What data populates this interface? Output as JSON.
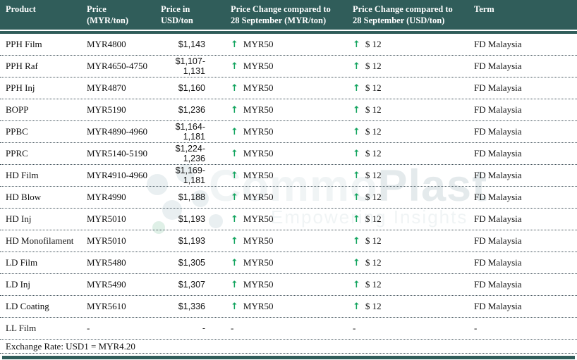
{
  "table": {
    "columns": [
      {
        "line1": "Product",
        "line2": ""
      },
      {
        "line1": "Price",
        "line2": "(MYR/ton)"
      },
      {
        "line1": "Price in",
        "line2": "USD/ton"
      },
      {
        "line1": "Price Change compared to",
        "line2": "28 September (MYR/ton)"
      },
      {
        "line1": "Price Change compared to",
        "line2": "28 September (USD/ton)"
      },
      {
        "line1": "Term",
        "line2": ""
      }
    ],
    "rows": [
      {
        "product": "PPH Film",
        "price_myr": "MYR4800",
        "price_usd": "$1,143",
        "change_myr": {
          "up": true,
          "text": "MYR50"
        },
        "change_usd": {
          "up": true,
          "text": "$ 12"
        },
        "term": "FD Malaysia"
      },
      {
        "product": "PPH Raf",
        "price_myr": "MYR4650-4750",
        "price_usd": "$1,107-1,131",
        "change_myr": {
          "up": true,
          "text": "MYR50"
        },
        "change_usd": {
          "up": true,
          "text": "$ 12"
        },
        "term": "FD Malaysia"
      },
      {
        "product": "PPH Inj",
        "price_myr": "MYR4870",
        "price_usd": "$1,160",
        "change_myr": {
          "up": true,
          "text": "MYR50"
        },
        "change_usd": {
          "up": true,
          "text": "$ 12"
        },
        "term": "FD Malaysia"
      },
      {
        "product": "BOPP",
        "price_myr": "MYR5190",
        "price_usd": "$1,236",
        "change_myr": {
          "up": true,
          "text": "MYR50"
        },
        "change_usd": {
          "up": true,
          "text": "$ 12"
        },
        "term": "FD Malaysia"
      },
      {
        "product": "PPBC",
        "price_myr": "MYR4890-4960",
        "price_usd": "$1,164-1,181",
        "change_myr": {
          "up": true,
          "text": "MYR50"
        },
        "change_usd": {
          "up": true,
          "text": "$ 12"
        },
        "term": "FD Malaysia"
      },
      {
        "product": "PPRC",
        "price_myr": "MYR5140-5190",
        "price_usd": "$1,224-1,236",
        "change_myr": {
          "up": true,
          "text": "MYR50"
        },
        "change_usd": {
          "up": true,
          "text": "$ 12"
        },
        "term": "FD Malaysia"
      },
      {
        "product": "HD Film",
        "price_myr": "MYR4910-4960",
        "price_usd": "$1,169-1,181",
        "change_myr": {
          "up": true,
          "text": "MYR50"
        },
        "change_usd": {
          "up": true,
          "text": "$ 12"
        },
        "term": "FD Malaysia"
      },
      {
        "product": "HD Blow",
        "price_myr": "MYR4990",
        "price_usd": "$1,188",
        "change_myr": {
          "up": true,
          "text": "MYR50"
        },
        "change_usd": {
          "up": true,
          "text": "$ 12"
        },
        "term": "FD Malaysia"
      },
      {
        "product": "HD Inj",
        "price_myr": "MYR5010",
        "price_usd": "$1,193",
        "change_myr": {
          "up": true,
          "text": "MYR50"
        },
        "change_usd": {
          "up": true,
          "text": "$ 12"
        },
        "term": "FD Malaysia"
      },
      {
        "product": "HD Monofilament",
        "price_myr": "MYR5010",
        "price_usd": "$1,193",
        "change_myr": {
          "up": true,
          "text": "MYR50"
        },
        "change_usd": {
          "up": true,
          "text": "$ 12"
        },
        "term": "FD Malaysia"
      },
      {
        "product": "LD Film",
        "price_myr": "MYR5480",
        "price_usd": "$1,305",
        "change_myr": {
          "up": true,
          "text": "MYR50"
        },
        "change_usd": {
          "up": true,
          "text": "$ 12"
        },
        "term": "FD Malaysia"
      },
      {
        "product": "LD Inj",
        "price_myr": "MYR5490",
        "price_usd": "$1,307",
        "change_myr": {
          "up": true,
          "text": "MYR50"
        },
        "change_usd": {
          "up": true,
          "text": "$ 12"
        },
        "term": "FD Malaysia"
      },
      {
        "product": "LD Coating",
        "price_myr": "MYR5610",
        "price_usd": "$1,336",
        "change_myr": {
          "up": true,
          "text": "MYR50"
        },
        "change_usd": {
          "up": true,
          "text": "$ 12"
        },
        "term": "FD Malaysia"
      },
      {
        "product": "LL Film",
        "price_myr": "-",
        "price_usd": "-",
        "change_myr": {
          "up": false,
          "text": "-"
        },
        "change_usd": {
          "up": false,
          "text": "-"
        },
        "term": "-"
      }
    ],
    "footer": "Exchange Rate: USD1 = MYR4.20"
  },
  "icons": {
    "up_arrow": "↑"
  },
  "watermark": {
    "brand_prefix": "Commo",
    "brand_suffix": "Plast",
    "tagline": "Empowering Insights"
  },
  "colors": {
    "header_bg": "#305D5A",
    "arrow_green": "#12A45E",
    "dotted_line": "#44545D",
    "wm_light": "#F0F4F5",
    "wm_mid": "#E4EAEC",
    "wm_dot": "#E9EFF1",
    "wm_dot_green": "#DFF0E7"
  }
}
